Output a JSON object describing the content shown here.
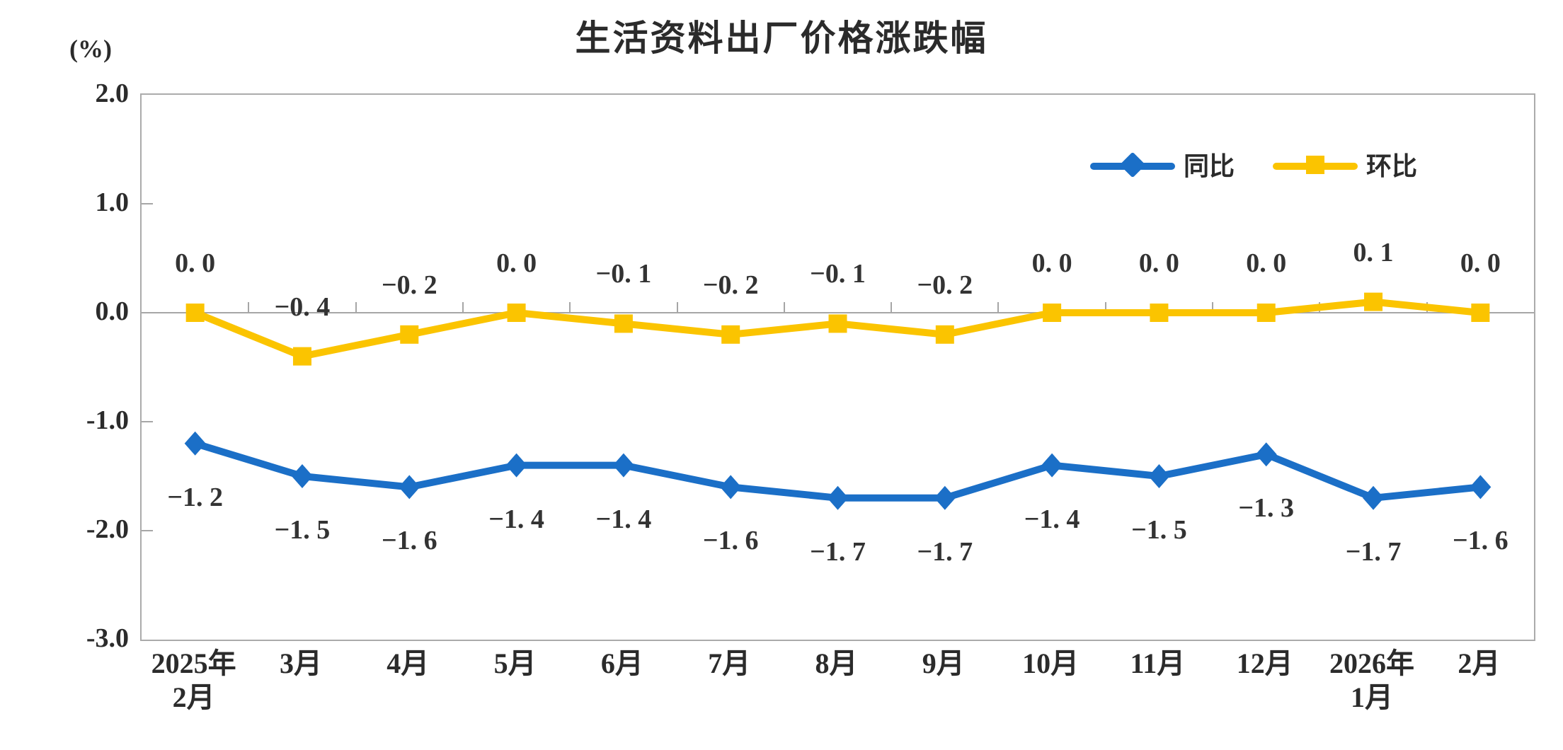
{
  "chart_data": {
    "type": "line",
    "title": "生活资料出厂价格涨跌幅",
    "y_unit": "(%)",
    "ylim": [
      -3.0,
      2.0
    ],
    "y_tick_step": 1.0,
    "y_ticks": [
      "2.0",
      "1.0",
      "0.0",
      "-1.0",
      "-2.0",
      "-3.0"
    ],
    "grid": "zero-line-only",
    "legend_position": "top-right-inside",
    "axis_color": "#ababab",
    "text_color": "#2b2b2b",
    "categories": [
      [
        "2025年",
        "2月"
      ],
      [
        "3月"
      ],
      [
        "4月"
      ],
      [
        "5月"
      ],
      [
        "6月"
      ],
      [
        "7月"
      ],
      [
        "8月"
      ],
      [
        "9月"
      ],
      [
        "10月"
      ],
      [
        "11月"
      ],
      [
        "12月"
      ],
      [
        "2026年",
        "1月"
      ],
      [
        "2月"
      ]
    ],
    "series": [
      {
        "name": "同比",
        "color": "#1b6fc7",
        "marker": "diamond",
        "label_position": "below",
        "values": [
          -1.2,
          -1.5,
          -1.6,
          -1.4,
          -1.4,
          -1.6,
          -1.7,
          -1.7,
          -1.4,
          -1.5,
          -1.3,
          -1.7,
          -1.6
        ],
        "labels": [
          "−1. 2",
          "−1. 5",
          "−1. 6",
          "−1. 4",
          "−1. 4",
          "−1. 6",
          "−1. 7",
          "−1. 7",
          "−1. 4",
          "−1. 5",
          "−1. 3",
          "−1. 7",
          "−1. 6"
        ]
      },
      {
        "name": "环比",
        "color": "#fbc400",
        "marker": "square",
        "label_position": "above",
        "values": [
          0.0,
          -0.4,
          -0.2,
          0.0,
          -0.1,
          -0.2,
          -0.1,
          -0.2,
          0.0,
          0.0,
          0.0,
          0.1,
          0.0
        ],
        "labels": [
          "0. 0",
          "−0. 4",
          "−0. 2",
          "0. 0",
          "−0. 1",
          "−0. 2",
          "−0. 1",
          "−0. 2",
          "0. 0",
          "0. 0",
          "0. 0",
          "0. 1",
          "0. 0"
        ]
      }
    ]
  }
}
